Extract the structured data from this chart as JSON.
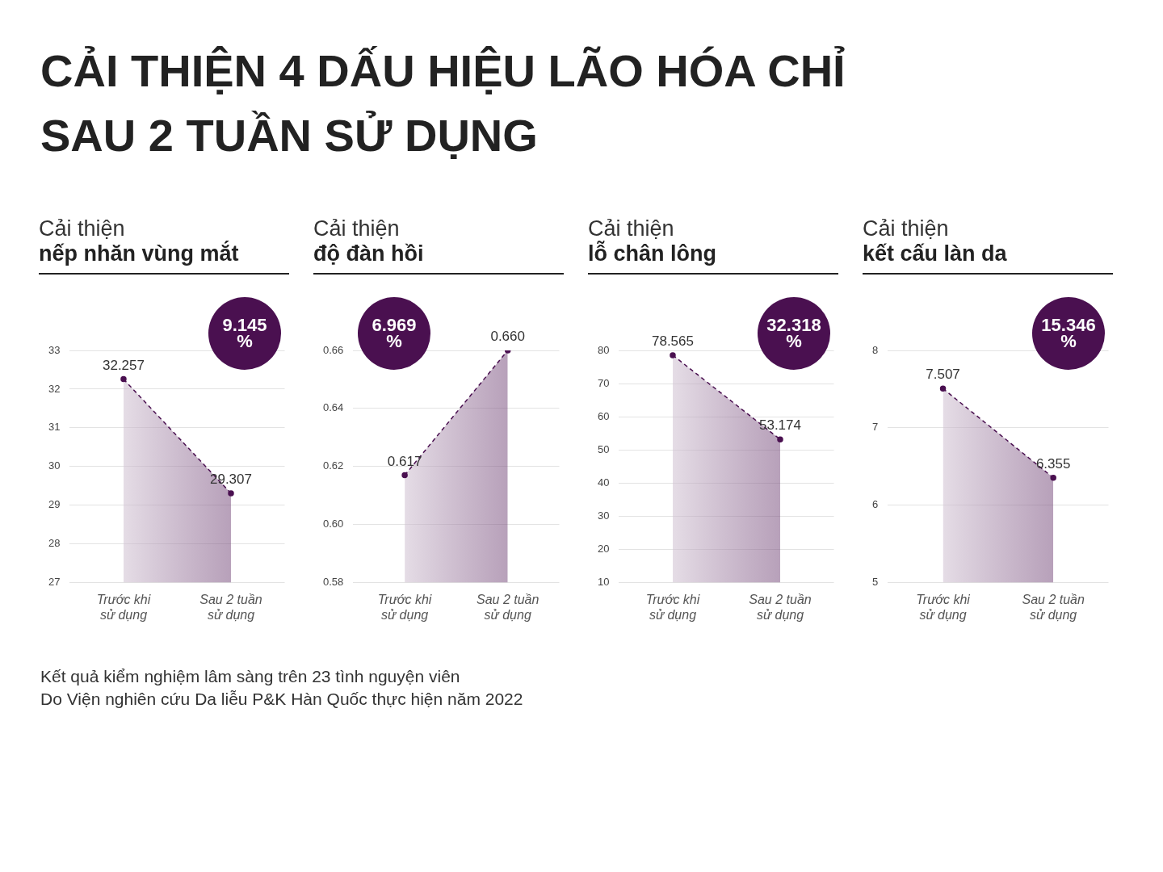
{
  "chart_data": [
    {
      "type": "other",
      "title": "CẢI THIỆN 4 DẤU HIỆU LÃO HÓA CHỈ SAU 2 TUẦN SỬ DỤNG"
    },
    {
      "type": "area",
      "title": "Cải thiện",
      "subtitle": "nếp nhăn vùng mắt",
      "categories": [
        "Trước khi sử dụng",
        "Sau 2 tuần sử dụng"
      ],
      "series": [
        {
          "color": "#4a1050",
          "values": [
            32.257,
            29.307
          ],
          "value_labels": [
            "32.257",
            "29.307"
          ]
        }
      ],
      "ylim": [
        27,
        33
      ],
      "yticks": [
        27,
        28,
        29,
        30,
        31,
        32,
        33
      ],
      "grid": "y",
      "marker": "circle",
      "line_style": "dashed",
      "annotations": [
        "9.145 %"
      ]
    },
    {
      "type": "area",
      "title": "Cải thiện",
      "subtitle": "độ đàn hồi",
      "categories": [
        "Trước khi sử dụng",
        "Sau 2 tuần sử dụng"
      ],
      "series": [
        {
          "color": "#4a1050",
          "values": [
            0.617,
            0.66
          ],
          "value_labels": [
            "0.617",
            "0.660"
          ]
        }
      ],
      "ylim": [
        0.58,
        0.66
      ],
      "yticks": [
        {
          "value": 0.58,
          "label": "0.58"
        },
        {
          "value": 0.6,
          "label": "0.60"
        },
        {
          "value": 0.62,
          "label": "0.62"
        },
        {
          "value": 0.64,
          "label": "0.64"
        },
        {
          "value": 0.66,
          "label": "0.66"
        }
      ],
      "grid": "y",
      "marker": "circle",
      "line_style": "dashed",
      "annotations": [
        "6.969 %"
      ]
    },
    {
      "type": "area",
      "title": "Cải thiện",
      "subtitle": "lỗ chân lông",
      "categories": [
        "Trước khi sử dụng",
        "Sau 2 tuần sử dụng"
      ],
      "series": [
        {
          "color": "#4a1050",
          "values": [
            78.565,
            53.174
          ],
          "value_labels": [
            "78.565",
            "53.174"
          ]
        }
      ],
      "ylim": [
        10,
        80
      ],
      "yticks": [
        10,
        20,
        30,
        40,
        50,
        60,
        70,
        80
      ],
      "grid": "y",
      "marker": "circle",
      "line_style": "dashed",
      "annotations": [
        "32.318 %"
      ]
    },
    {
      "type": "area",
      "title": "Cải thiện",
      "subtitle": "kết cấu làn da",
      "categories": [
        "Trước khi sử dụng",
        "Sau 2 tuần sử dụng"
      ],
      "series": [
        {
          "color": "#4a1050",
          "values": [
            7.507,
            6.355
          ],
          "value_labels": [
            "7.507",
            "6.355"
          ]
        }
      ],
      "ylim": [
        5,
        8
      ],
      "yticks": [
        5,
        6,
        7,
        8
      ],
      "grid": "y",
      "marker": "circle",
      "line_style": "dashed",
      "annotations": [
        "15.346 %"
      ]
    },
    {
      "type": "other",
      "annotations": [
        "Kết quả kiểm nghiệm lâm sàng trên 23 tình nguyện viên",
        "Do Viện nghiên cứu Da liễu P&K Hàn Quốc thực hiện năm 2022"
      ]
    }
  ]
}
